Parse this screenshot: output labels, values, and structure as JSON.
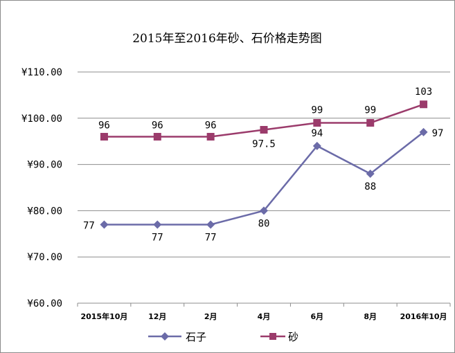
{
  "chart_data": {
    "type": "line",
    "title": "2015年至2016年砂、石价格走势图",
    "categories": [
      "2015年10月",
      "12月",
      "2月",
      "4月",
      "6月",
      "8月",
      "2016年10月"
    ],
    "ylim": [
      60,
      110
    ],
    "yticks": [
      "¥110.00",
      "¥100.00",
      "¥90.00",
      "¥80.00",
      "¥70.00",
      "¥60.00"
    ],
    "ytick_values": [
      110,
      100,
      90,
      80,
      70,
      60
    ],
    "grid": true,
    "legend_position": "bottom",
    "series": [
      {
        "name": "石子",
        "values": [
          77,
          77,
          77,
          80,
          94,
          88,
          97
        ],
        "labels": [
          "77",
          "77",
          "77",
          "80",
          "94",
          "88",
          "97"
        ],
        "marker": "diamond",
        "color": "#6B6BA8"
      },
      {
        "name": "砂",
        "values": [
          96,
          96,
          96,
          97.5,
          99,
          99,
          103
        ],
        "labels": [
          "96",
          "96",
          "96",
          "97.5",
          "99",
          "99",
          "103"
        ],
        "marker": "square",
        "color": "#9B3B6B"
      }
    ]
  }
}
